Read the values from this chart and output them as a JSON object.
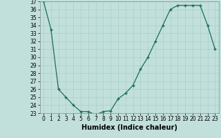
{
  "x": [
    0,
    1,
    2,
    3,
    4,
    5,
    6,
    7,
    8,
    9,
    10,
    11,
    12,
    13,
    14,
    15,
    16,
    17,
    18,
    19,
    20,
    21,
    22,
    23
  ],
  "y": [
    37,
    33.5,
    26,
    25,
    24,
    23.2,
    23.2,
    22.8,
    23.2,
    23.3,
    24.8,
    25.5,
    26.5,
    28.5,
    30,
    32,
    34,
    36,
    36.5,
    36.5,
    36.5,
    36.5,
    34,
    31
  ],
  "xlabel": "Humidex (Indice chaleur)",
  "ylim": [
    23,
    37
  ],
  "xlim": [
    -0.5,
    23.5
  ],
  "line_color": "#1a6b5a",
  "marker": "+",
  "bg_color": "#c2e0db",
  "grid_color": "#a8cfc8",
  "tick_fontsize": 5.5,
  "label_fontsize": 7,
  "yticks": [
    23,
    24,
    25,
    26,
    27,
    28,
    29,
    30,
    31,
    32,
    33,
    34,
    35,
    36,
    37
  ],
  "xticks": [
    0,
    1,
    2,
    3,
    4,
    5,
    6,
    7,
    8,
    9,
    10,
    11,
    12,
    13,
    14,
    15,
    16,
    17,
    18,
    19,
    20,
    21,
    22,
    23
  ]
}
